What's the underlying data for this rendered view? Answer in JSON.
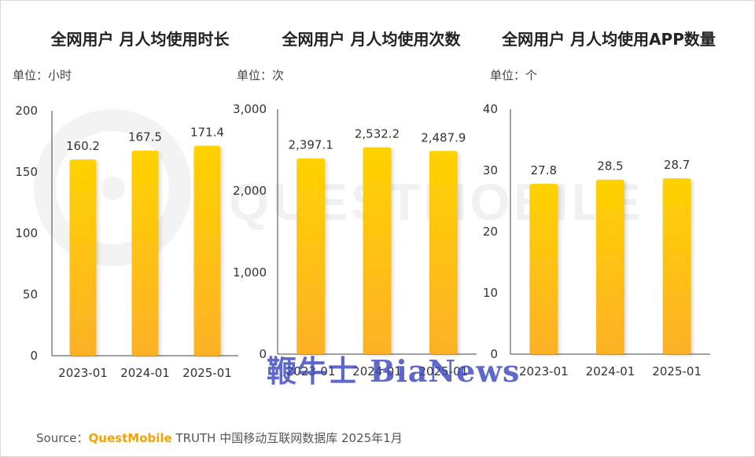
{
  "source": {
    "prefix": "Source：",
    "brand": "QuestMobile",
    "text": "TRUTH 中国移动互联网数据库 2025年1月"
  },
  "watermark": {
    "text": "QUESTMOBILE"
  },
  "overlay_stamp": {
    "text": "鞭牛士 BiaNews"
  },
  "colors": {
    "bar_top": "#ffd200",
    "bar_bottom": "#fdb128",
    "axis": "#444444",
    "text": "#333333",
    "brand": "#f5a300"
  },
  "chart_data": [
    {
      "type": "bar",
      "title": "全网用户 月人均使用时长",
      "unit_label": "单位：小时",
      "categories": [
        "2023-01",
        "2024-01",
        "2025-01"
      ],
      "values": [
        160.2,
        167.5,
        171.4
      ],
      "value_labels": [
        "160.2",
        "167.5",
        "171.4"
      ],
      "ylim": [
        0,
        200
      ],
      "yticks": [
        0,
        50,
        100,
        150,
        200
      ],
      "ytick_labels": [
        "0",
        "50",
        "100",
        "150",
        "200"
      ],
      "grid": false
    },
    {
      "type": "bar",
      "title": "全网用户 月人均使用次数",
      "unit_label": "单位：次",
      "categories": [
        "2023-01",
        "2024-01",
        "2025-01"
      ],
      "values": [
        2397.1,
        2532.2,
        2487.9
      ],
      "value_labels": [
        "2,397.1",
        "2,532.2",
        "2,487.9"
      ],
      "ylim": [
        0,
        3000
      ],
      "yticks": [
        0,
        1000,
        2000,
        3000
      ],
      "ytick_labels": [
        "0",
        "1,000",
        "2,000",
        "3,000"
      ],
      "grid": false
    },
    {
      "type": "bar",
      "title": "全网用户 月人均使用APP数量",
      "unit_label": "单位：个",
      "categories": [
        "2023-01",
        "2024-01",
        "2025-01"
      ],
      "values": [
        27.8,
        28.5,
        28.7
      ],
      "value_labels": [
        "27.8",
        "28.5",
        "28.7"
      ],
      "ylim": [
        0,
        40
      ],
      "yticks": [
        0,
        10,
        20,
        30,
        40
      ],
      "ytick_labels": [
        "0",
        "10",
        "20",
        "30",
        "40"
      ],
      "grid": false
    }
  ]
}
